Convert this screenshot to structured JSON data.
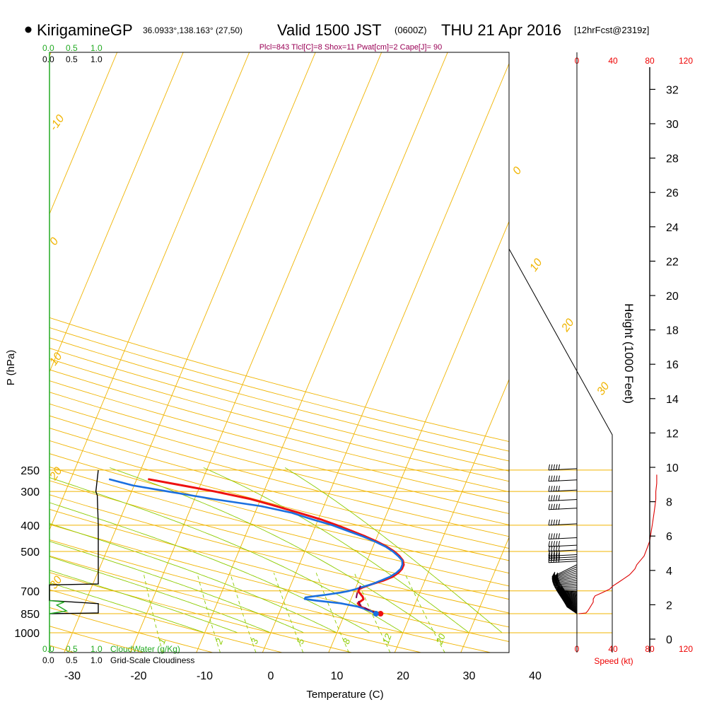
{
  "header": {
    "station": "KirigamineGP",
    "coords": "36.0933°,138.163° (27,50)",
    "valid": "Valid 1500 JST",
    "utc": "(0600Z)",
    "date": "THU 21 Apr 2016",
    "forecast": "[12hrFcst@2319z]"
  },
  "indices": "Plcl=843 Tlcl[C]=8 Shox=11 Pwat[cm]=2 Cape[J]= 90",
  "scales": {
    "cloudwater_top": [
      "0.0",
      "0.5",
      "1.0"
    ],
    "cloudiness_top": [
      "0.0",
      "0.5",
      "1.0"
    ],
    "cloudwater_bottom": [
      "0.0",
      "0.5",
      "1.0"
    ],
    "cloudiness_bottom": [
      "0.0",
      "0.5",
      "1.0"
    ],
    "cloudwater_label": "CloudWater (g/Kg)",
    "cloudiness_label": "Grid-Scale Cloudiness",
    "speed_ticks": [
      "0",
      "40",
      "80",
      "120"
    ],
    "speed_label": "Speed (kt)"
  },
  "colors": {
    "temperature": "#ee1111",
    "dewpoint": "#1a6fe0",
    "parcel": "#7a0050",
    "isotherm": "#f0b400",
    "dry_adiabat": "#f0b400",
    "moist_adiabat": "#8ccc00",
    "mixing_ratio": "#8ccc00",
    "cloudwater": "#22aa22",
    "speed": "#dd0000",
    "indices": "#990055"
  },
  "chart_data": {
    "type": "line",
    "title": "KirigamineGP Valid 1500 JST (0600Z) THU 21 Apr 2016",
    "xlabel": "Temperature (C)",
    "ylabel": "P (hPa)",
    "xticks": [
      -30,
      -20,
      -10,
      0,
      10,
      20,
      30,
      40
    ],
    "pressure_ticks": [
      250,
      300,
      400,
      500,
      700,
      850,
      1000
    ],
    "height_ticks": [
      0,
      2,
      4,
      6,
      8,
      10,
      12,
      14,
      16,
      18,
      20,
      22,
      24,
      26,
      28,
      30,
      32
    ],
    "height_label": "Height (1000 Feet)",
    "yscale": "log",
    "ylim": [
      1000,
      250
    ],
    "isotherm_labels": [
      "-10",
      "0",
      "10",
      "20",
      "30",
      "0",
      "10",
      "20",
      "30"
    ],
    "mixing_ratio_labels": [
      "1",
      "2",
      "3",
      "5",
      "8",
      "12",
      "20"
    ],
    "series": [
      {
        "name": "Temperature",
        "p": [
          850,
          833,
          800,
          778,
          769,
          752,
          735,
          702,
          690,
          680,
          660,
          640,
          620,
          600,
          580,
          560,
          540,
          520,
          500,
          480,
          460,
          440,
          420,
          400,
          380,
          360,
          340,
          320,
          300,
          285,
          270
        ],
        "t": [
          15.4,
          13.9,
          11.9,
          11.3,
          11.5,
          11.9,
          11.6,
          10.6,
          10.6,
          11.0,
          12.3,
          13.8,
          14.9,
          15.5,
          15.8,
          15.8,
          15.4,
          14.6,
          13.5,
          12.1,
          10.3,
          8.2,
          5.8,
          3.2,
          0.3,
          -3.3,
          -7.2,
          -11.5,
          -17.4,
          -22.7,
          -28.3
        ]
      },
      {
        "name": "Dewpoint",
        "p": [
          850,
          833,
          800,
          778,
          760,
          750,
          740,
          735,
          725,
          710,
          700,
          690,
          680,
          660,
          640,
          620,
          600,
          580,
          560,
          540,
          520,
          500,
          480,
          460,
          440,
          420,
          400,
          380,
          360,
          340,
          320,
          300,
          285,
          270
        ],
        "t": [
          14.7,
          13.9,
          11.5,
          8.7,
          4.8,
          3.0,
          3.0,
          3.8,
          5.7,
          8.0,
          9.2,
          10.1,
          10.7,
          12.3,
          13.4,
          14.5,
          15.2,
          15.6,
          15.6,
          15.3,
          14.4,
          13.3,
          11.9,
          10.0,
          7.8,
          5.2,
          2.5,
          -1.0,
          -4.4,
          -9.5,
          -17.2,
          -24.5,
          -30.2,
          -34.2
        ]
      },
      {
        "name": "Parcel",
        "p": [
          850,
          830,
          810,
          790,
          775,
          760,
          740,
          720,
          700,
          680,
          670
        ],
        "t": [
          15.0,
          13.8,
          12.7,
          11.8,
          11.5,
          11.2,
          10.7,
          10.6,
          10.5,
          10.6,
          10.6
        ]
      }
    ],
    "wind_pressures": [
      850,
      845,
      840,
      835,
      830,
      825,
      820,
      815,
      810,
      805,
      800,
      795,
      790,
      785,
      780,
      775,
      770,
      765,
      760,
      755,
      750,
      745,
      740,
      735,
      730,
      725,
      720,
      715,
      710,
      705,
      700,
      690,
      680,
      670,
      660,
      650,
      640,
      630,
      620,
      610,
      600,
      590,
      580,
      570,
      560,
      550,
      540,
      530,
      520,
      500,
      480,
      450,
      400,
      350,
      325,
      300,
      275,
      250
    ],
    "wind_speed_profile": {
      "p": [
        850,
        845,
        830,
        810,
        790,
        770,
        750,
        730,
        710,
        700,
        690,
        670,
        650,
        630,
        610,
        600,
        580,
        560,
        540,
        520,
        500,
        480,
        460,
        440,
        420,
        400,
        380,
        360,
        340,
        320,
        300,
        280,
        260
      ],
      "kt": [
        2,
        10,
        12,
        14,
        16,
        18,
        18,
        20,
        28,
        32,
        36,
        40,
        46,
        52,
        58,
        60,
        64,
        66,
        70,
        74,
        76,
        78,
        80,
        81,
        82,
        83,
        84,
        85,
        86,
        87,
        87,
        88,
        88
      ]
    },
    "cloudiness": {
      "p": [
        250,
        300,
        310,
        400,
        500,
        600,
        650,
        660,
        665,
        690,
        760,
        780,
        845,
        850
      ],
      "frac": [
        1.0,
        0.95,
        0.98,
        1.0,
        1.0,
        1.0,
        1.0,
        1.0,
        0.0,
        0.0,
        0.0,
        1.0,
        1.0,
        0.0
      ]
    },
    "cloudwater": {
      "p": [
        760,
        770,
        790,
        810,
        830,
        850
      ],
      "q": [
        0.0,
        0.3,
        0.15,
        0.25,
        0.35,
        0.0
      ]
    }
  }
}
